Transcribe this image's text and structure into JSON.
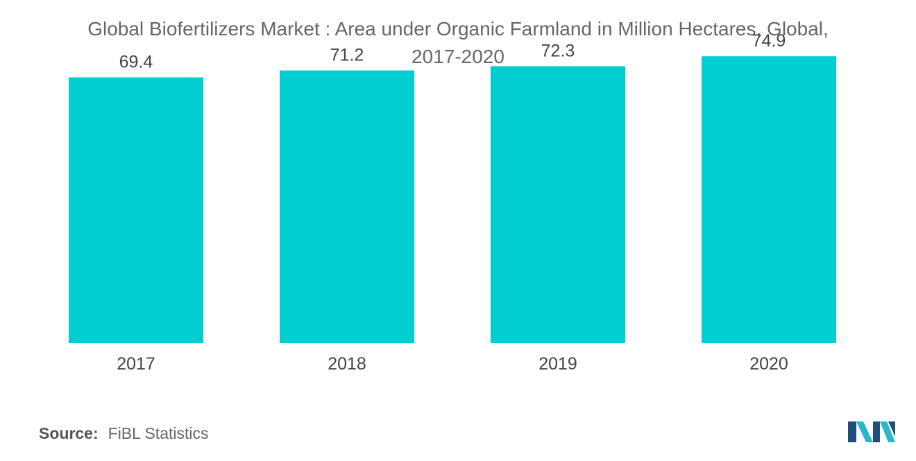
{
  "title": "Global Biofertilizers Market : Area under Organic Farmland in Million Hectares, Global,",
  "subtitle": "2017-2020",
  "source_label": "Source:",
  "source_text": "FiBL Statistics",
  "colors": {
    "bar": "#00CED1",
    "text": "#555555",
    "logo_dark": "#1f4e79",
    "logo_light": "#2ab7c9"
  },
  "icons": {
    "logo": "mordor-intelligence-logo"
  },
  "chart_data": {
    "type": "bar",
    "title": "Global Biofertilizers Market : Area under Organic Farmland in Million Hectares, Global, 2017-2020",
    "categories": [
      "2017",
      "2018",
      "2019",
      "2020"
    ],
    "values": [
      69.4,
      71.2,
      72.3,
      74.9
    ],
    "value_labels": [
      "69.4",
      "71.2",
      "72.3",
      "74.9"
    ],
    "xlabel": "",
    "ylabel": "",
    "ylim": [
      0,
      80
    ],
    "grid": false,
    "legend": "none"
  }
}
